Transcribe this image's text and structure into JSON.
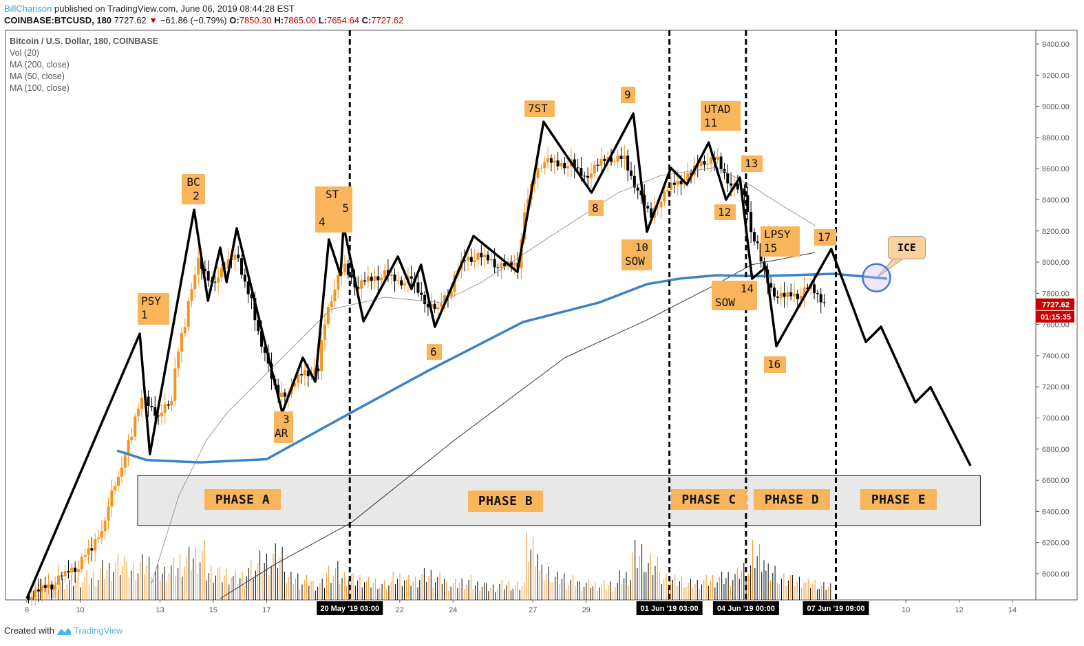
{
  "header": {
    "author": "BillCharison",
    "published": "published on TradingView.com, June 06, 2019 08:44:28 EST",
    "symbol": "COINBASE:BTCUSD, 180",
    "last": "7727.62",
    "change": "−61.86 (−0.79%)",
    "o_label": "O:",
    "o": "7850.30",
    "h_label": "H:",
    "h": "7865.00",
    "l_label": "L:",
    "l": "7654.64",
    "c_label": "C:",
    "c": "7727.62"
  },
  "legend": {
    "title": "Bitcoin / U.S. Dollar, 180, COINBASE",
    "items": [
      "Vol (20)",
      "MA (200, close)",
      "MA (50, close)",
      "MA (100, close)"
    ]
  },
  "price_badge": {
    "price": "7727.62",
    "timer": "01:15:35",
    "color": "#cc0000"
  },
  "footer": {
    "created": "Created with",
    "brand": "TradingView"
  },
  "annotations": {
    "psy": [
      "PSY",
      "1"
    ],
    "bc": [
      "BC",
      "2"
    ],
    "ar": [
      "3",
      "AR"
    ],
    "st": [
      "ST",
      "5",
      "4"
    ],
    "six": "6",
    "seven": "7ST",
    "eight": "8",
    "nine": "9",
    "ten": [
      "10",
      "SOW"
    ],
    "utad": [
      "UTAD",
      "11"
    ],
    "twelve": "12",
    "thirteen": "13",
    "fourteen": [
      "14",
      "SOW"
    ],
    "lpsy": [
      "LPSY",
      "15"
    ],
    "sixteen": "16",
    "seventeen": "17",
    "ice": "ICE"
  },
  "phases": [
    "PHASE A",
    "PHASE B",
    "PHASE C",
    "PHASE D",
    "PHASE E"
  ],
  "colors": {
    "up": "#f7931a",
    "down": "#000000",
    "ma200": "#3a82c8",
    "ann": "#f9b55c"
  },
  "chart_data": {
    "type": "candlestick",
    "title": "Bitcoin / U.S. Dollar, 180, COINBASE",
    "x_unit": "days since 08 May 2019",
    "xlim": [
      -0.8,
      37.5
    ],
    "ylim": [
      5840,
      9480
    ],
    "y_ticks": [
      6000,
      6200,
      6400,
      6600,
      6800,
      7000,
      7200,
      7400,
      7600,
      7800,
      8000,
      8200,
      8400,
      8600,
      8800,
      9000,
      9200,
      9400
    ],
    "x_ticks": [
      {
        "x": 0,
        "label": "8"
      },
      {
        "x": 2,
        "label": "10"
      },
      {
        "x": 5,
        "label": "13"
      },
      {
        "x": 7,
        "label": "15"
      },
      {
        "x": 9,
        "label": "17"
      },
      {
        "x": 14,
        "label": "22"
      },
      {
        "x": 16,
        "label": "24"
      },
      {
        "x": 19,
        "label": "27"
      },
      {
        "x": 21,
        "label": "29"
      },
      {
        "x": 33,
        "label": "10"
      },
      {
        "x": 35,
        "label": "12"
      },
      {
        "x": 37,
        "label": "14"
      }
    ],
    "markers": [
      {
        "x": 12.125,
        "label": "20 May '19   03:00"
      },
      {
        "x": 24.125,
        "label": "01 Jun '19   03:00"
      },
      {
        "x": 27.0,
        "label": "04 Jun '19   00:00"
      },
      {
        "x": 30.375,
        "label": "07 Jun '19   09:00"
      }
    ],
    "closes_step": 0.5,
    "closes_start": 0.5,
    "closes": [
      5900,
      5950,
      6020,
      6080,
      6200,
      6400,
      6750,
      7000,
      7300,
      6900,
      7200,
      7800,
      8200,
      7800,
      8000,
      8100,
      7600,
      7300,
      7000,
      7200,
      7350,
      7300,
      8000,
      8050,
      7800,
      7900,
      7950,
      7850,
      7900,
      7700,
      7650,
      7900,
      8100,
      8050,
      8000,
      7950,
      8000,
      8700,
      8750,
      8600,
      8650,
      8500,
      8650,
      8700,
      8650,
      8400,
      8200,
      8500,
      8550,
      8580,
      8700,
      8650,
      8450,
      8400,
      7950,
      7700,
      7750,
      7800,
      7850,
      7728
    ],
    "volumes": [
      30,
      25,
      35,
      40,
      45,
      60,
      70,
      55,
      65,
      50,
      60,
      75,
      85,
      55,
      50,
      45,
      60,
      70,
      80,
      40,
      35,
      30,
      55,
      45,
      40,
      35,
      30,
      40,
      35,
      45,
      40,
      30,
      35,
      30,
      25,
      30,
      28,
      95,
      50,
      40,
      35,
      30,
      28,
      30,
      45,
      90,
      70,
      40,
      35,
      30,
      35,
      40,
      45,
      60,
      90,
      55,
      40,
      35,
      30,
      25
    ],
    "wyckoff_path": [
      [
        0,
        5841
      ],
      [
        4.24,
        7541
      ],
      [
        4.62,
        6768
      ],
      [
        6.28,
        8336
      ],
      [
        6.8,
        7753
      ],
      [
        7.26,
        8093
      ],
      [
        7.5,
        7872
      ],
      [
        7.88,
        8217
      ],
      [
        9.59,
        7034
      ],
      [
        10.36,
        7387
      ],
      [
        10.83,
        7232
      ],
      [
        11.34,
        8146
      ],
      [
        11.78,
        7917
      ],
      [
        11.89,
        8235
      ],
      [
        12.64,
        7621
      ],
      [
        13.93,
        8036
      ],
      [
        14.44,
        7828
      ],
      [
        14.8,
        7983
      ],
      [
        15.32,
        7585
      ],
      [
        16.77,
        8168
      ],
      [
        18.42,
        7938
      ],
      [
        19.4,
        8901
      ],
      [
        21.2,
        8446
      ],
      [
        22.77,
        8954
      ],
      [
        23.28,
        8195
      ],
      [
        24.18,
        8605
      ],
      [
        24.78,
        8499
      ],
      [
        25.6,
        8768
      ],
      [
        26.25,
        8402
      ],
      [
        26.77,
        8543
      ],
      [
        27.23,
        7894
      ],
      [
        27.75,
        7969
      ],
      [
        28.14,
        7461
      ],
      [
        30.2,
        8084
      ],
      [
        31.5,
        7488
      ],
      [
        32.07,
        7585
      ],
      [
        33.36,
        7100
      ],
      [
        33.93,
        7197
      ],
      [
        35.43,
        6693
      ]
    ],
    "ma200": [
      [
        3.39,
        6790
      ],
      [
        4.5,
        6730
      ],
      [
        6.5,
        6715
      ],
      [
        9,
        6735
      ],
      [
        12.17,
        7034
      ],
      [
        15.01,
        7298
      ],
      [
        18.63,
        7616
      ],
      [
        21.47,
        7740
      ],
      [
        23.28,
        7859
      ],
      [
        24.5,
        7894
      ],
      [
        25.9,
        7916
      ],
      [
        27.5,
        7910
      ],
      [
        30.3,
        7925
      ],
      [
        32.3,
        7894
      ]
    ],
    "ma100": [
      [
        7.26,
        5841
      ],
      [
        9.33,
        6062
      ],
      [
        12.17,
        6327
      ],
      [
        16.05,
        6857
      ],
      [
        20.2,
        7387
      ],
      [
        23.28,
        7629
      ],
      [
        25.9,
        7859
      ],
      [
        27.2,
        7983
      ],
      [
        29.6,
        8062
      ]
    ],
    "ma50": [
      [
        4.67,
        5930
      ],
      [
        5.71,
        6503
      ],
      [
        6.74,
        6857
      ],
      [
        7.52,
        7034
      ],
      [
        11.4,
        7696
      ],
      [
        13.46,
        7775
      ],
      [
        15.53,
        7740
      ],
      [
        17.08,
        7872
      ],
      [
        19.4,
        8137
      ],
      [
        22.2,
        8446
      ],
      [
        23.8,
        8556
      ],
      [
        25.9,
        8609
      ],
      [
        27.2,
        8490
      ],
      [
        28.4,
        8358
      ],
      [
        29.6,
        8235
      ]
    ],
    "ice_point": [
      31.9,
      7900
    ],
    "phase_box_price": [
      6310,
      6630
    ],
    "phase_box_x": [
      4.16,
      35.8
    ]
  }
}
